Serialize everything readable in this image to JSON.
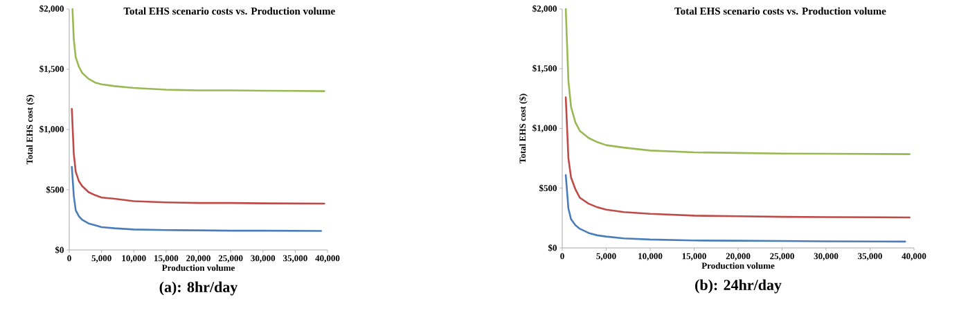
{
  "chart_data": [
    {
      "type": "line",
      "title": "Total  EHS  scenario  costs  vs.  Production volume",
      "subtitle": "(a): 8hr/day",
      "xlabel": "Production  volume",
      "ylabel": "Total EHS cost ($)",
      "xlim": [
        0,
        40000
      ],
      "ylim": [
        0,
        2000
      ],
      "xticks": [
        0,
        {
          "value": 5000,
          "label": "5,000"
        },
        {
          "value": 10000,
          "label": "10,000"
        },
        {
          "value": 15000,
          "label": "15,000"
        },
        {
          "value": 20000,
          "label": "20,000"
        },
        {
          "value": 25000,
          "label": "25,000"
        },
        {
          "value": 30000,
          "label": "30,000"
        },
        {
          "value": 35000,
          "label": "35,000"
        },
        {
          "value": 40000,
          "label": "40,000"
        }
      ],
      "yticks": [
        {
          "value": 0,
          "label": "$0"
        },
        {
          "value": 500,
          "label": "$500"
        },
        {
          "value": 1000,
          "label": "$1,000"
        },
        {
          "value": 1500,
          "label": "$1,500"
        },
        {
          "value": 2000,
          "label": "$2,000"
        }
      ],
      "grid": false,
      "legend": false,
      "marker": "none",
      "series": [
        {
          "color": "#4a7ebb",
          "x": [
            400,
            700,
            1000,
            1500,
            2000,
            3000,
            4000,
            5000,
            7000,
            10000,
            15000,
            20000,
            25000,
            30000,
            39000
          ],
          "values": [
            690,
            450,
            330,
            280,
            250,
            220,
            205,
            190,
            180,
            170,
            165,
            163,
            160,
            160,
            158
          ]
        },
        {
          "color": "#be4b48",
          "x": [
            400,
            700,
            1000,
            1500,
            2000,
            3000,
            4000,
            5000,
            7000,
            10000,
            15000,
            20000,
            25000,
            30000,
            39500
          ],
          "values": [
            1170,
            800,
            650,
            570,
            530,
            480,
            455,
            435,
            425,
            405,
            395,
            390,
            390,
            387,
            385
          ]
        },
        {
          "color": "#98b954",
          "x": [
            500,
            700,
            1000,
            1500,
            2000,
            3000,
            4000,
            5000,
            7000,
            10000,
            15000,
            20000,
            25000,
            30000,
            35000,
            39500
          ],
          "values": [
            2000,
            1750,
            1600,
            1520,
            1470,
            1420,
            1390,
            1375,
            1360,
            1345,
            1330,
            1325,
            1325,
            1322,
            1320,
            1318
          ]
        }
      ]
    },
    {
      "type": "line",
      "title": "Total  EHS  scenario  costs  vs.  Production volume",
      "subtitle": "(b): 24hr/day",
      "xlabel": "Production  volume",
      "ylabel": "Total EHS cost ($)",
      "xlim": [
        0,
        40000
      ],
      "ylim": [
        0,
        2000
      ],
      "xticks": [
        0,
        {
          "value": 5000,
          "label": "5,000"
        },
        {
          "value": 10000,
          "label": "10,000"
        },
        {
          "value": 15000,
          "label": "15,000"
        },
        {
          "value": 20000,
          "label": "20,000"
        },
        {
          "value": 25000,
          "label": "25,000"
        },
        {
          "value": 30000,
          "label": "30,000"
        },
        {
          "value": 35000,
          "label": "35,000"
        },
        {
          "value": 40000,
          "label": "40,000"
        }
      ],
      "yticks": [
        {
          "value": 0,
          "label": "$0"
        },
        {
          "value": 500,
          "label": "$500"
        },
        {
          "value": 1000,
          "label": "$1,000"
        },
        {
          "value": 1500,
          "label": "$1,500"
        },
        {
          "value": 2000,
          "label": "$2,000"
        }
      ],
      "grid": false,
      "legend": false,
      "marker": "none",
      "series": [
        {
          "color": "#4a7ebb",
          "x": [
            400,
            700,
            1000,
            1500,
            2000,
            3000,
            4000,
            5000,
            7000,
            10000,
            15000,
            20000,
            25000,
            30000,
            39000
          ],
          "values": [
            610,
            330,
            240,
            190,
            160,
            125,
            105,
            95,
            80,
            70,
            62,
            60,
            58,
            55,
            53
          ]
        },
        {
          "color": "#be4b48",
          "x": [
            400,
            700,
            1000,
            1500,
            2000,
            3000,
            4000,
            5000,
            7000,
            10000,
            15000,
            20000,
            25000,
            30000,
            39500
          ],
          "values": [
            1260,
            750,
            590,
            490,
            420,
            370,
            340,
            320,
            300,
            285,
            270,
            265,
            260,
            258,
            255
          ]
        },
        {
          "color": "#98b954",
          "x": [
            400,
            700,
            1000,
            1500,
            2000,
            3000,
            4000,
            5000,
            7000,
            10000,
            15000,
            20000,
            25000,
            30000,
            39500
          ],
          "values": [
            2000,
            1400,
            1180,
            1050,
            980,
            920,
            885,
            860,
            840,
            815,
            800,
            795,
            790,
            788,
            785
          ]
        }
      ]
    }
  ]
}
